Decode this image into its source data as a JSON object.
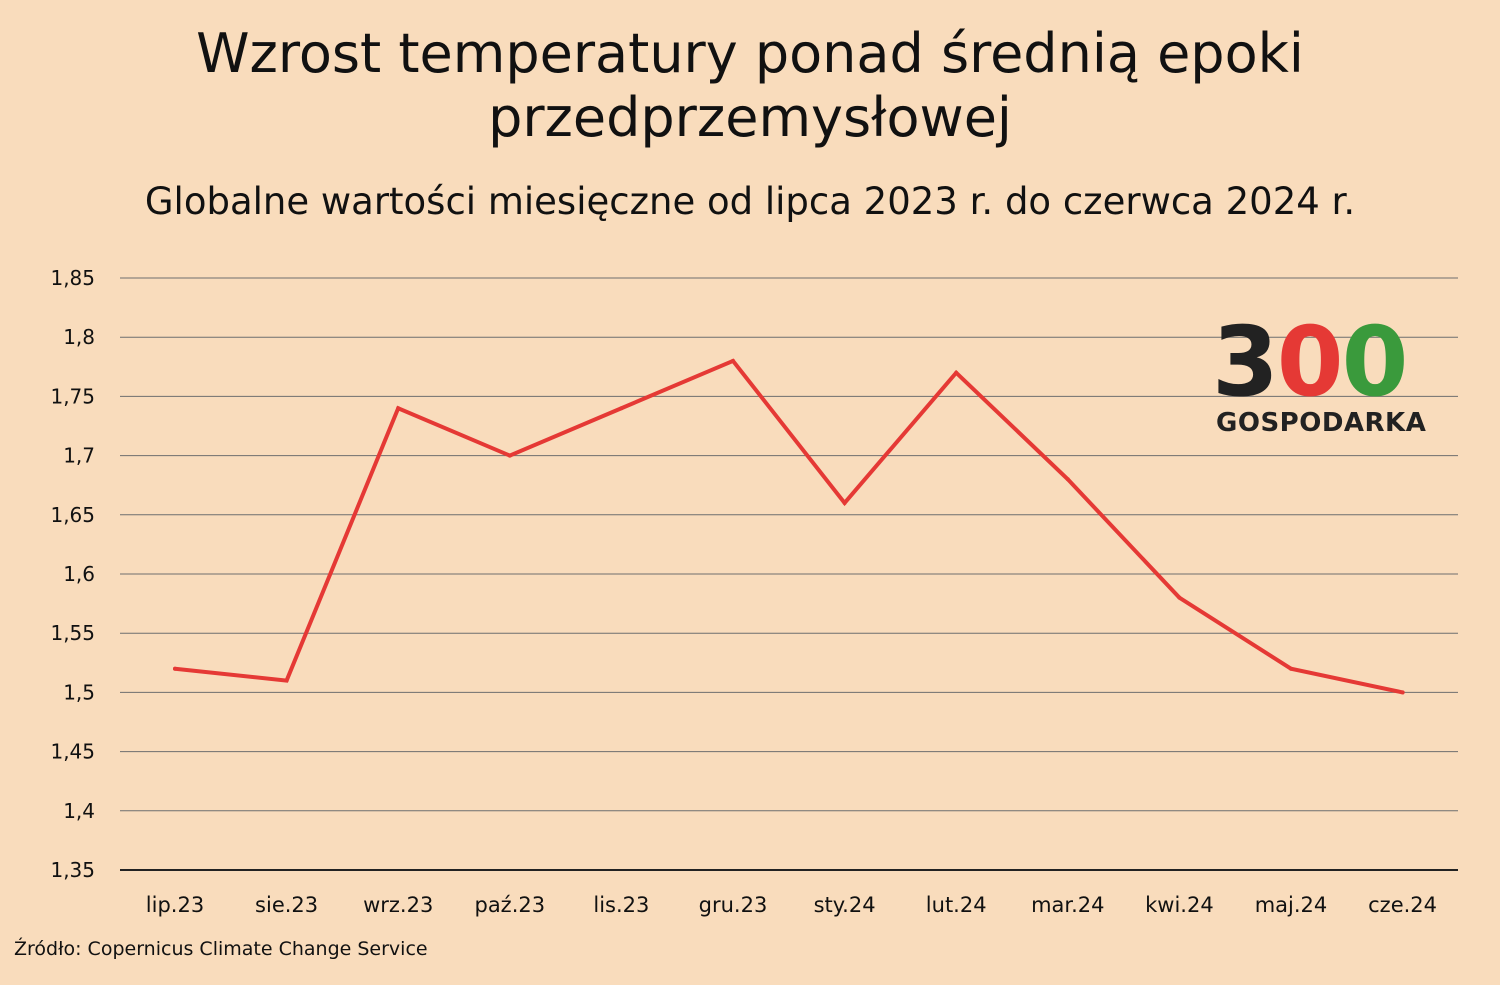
{
  "title_line1": "Wzrost temperatury ponad średnią epoki",
  "title_line2": "przedprzemysłowej",
  "subtitle": "Globalne wartości miesięczne od lipca 2023 r. do czerwca 2024 r.",
  "source": "Źródło: Copernicus Climate Change Service",
  "logo": {
    "number_3": "3",
    "number_0a": "0",
    "number_0b": "0",
    "word": "GOSPODARKA"
  },
  "colors": {
    "background": "#f9dcbc",
    "line": "#e53935",
    "grid": "#6e6e6e"
  },
  "chart_data": {
    "type": "line",
    "categories": [
      "lip.23",
      "sie.23",
      "wrz.23",
      "paź.23",
      "lis.23",
      "gru.23",
      "sty.24",
      "lut.24",
      "mar.24",
      "kwi.24",
      "maj.24",
      "cze.24"
    ],
    "values": [
      1.52,
      1.51,
      1.74,
      1.7,
      1.74,
      1.78,
      1.66,
      1.77,
      1.68,
      1.58,
      1.52,
      1.5
    ],
    "ylim": [
      1.35,
      1.85
    ],
    "yticks": [
      1.35,
      1.4,
      1.45,
      1.5,
      1.55,
      1.6,
      1.65,
      1.7,
      1.75,
      1.8,
      1.85
    ],
    "ytick_labels": [
      "1,35",
      "1,4",
      "1,45",
      "1,5",
      "1,55",
      "1,6",
      "1,65",
      "1,7",
      "1,75",
      "1,8",
      "1,85"
    ],
    "grid": "horizontal",
    "legend": "none"
  }
}
